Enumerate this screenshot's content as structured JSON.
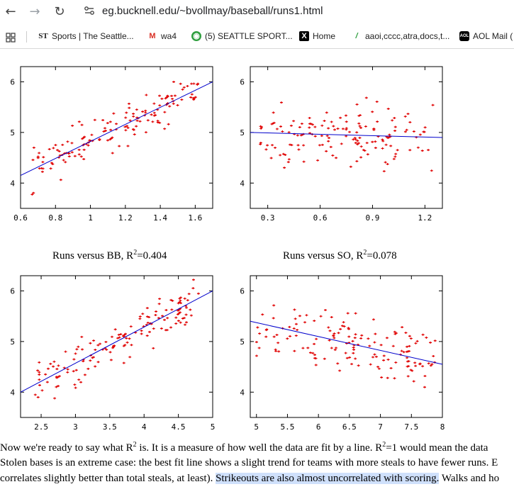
{
  "browser": {
    "url": "eg.bucknell.edu/~bvollmay/baseball/runs1.html",
    "bookmarks": [
      {
        "label": "Sports | The Seattle...",
        "icon": "seattle-times-icon"
      },
      {
        "label": "wa4",
        "icon": "gmail-icon"
      },
      {
        "label": "(5) SEATTLE SPORT...",
        "icon": "podcast-icon"
      },
      {
        "label": "Home",
        "icon": "x-icon"
      },
      {
        "label": "aaoi,cccc,atra,docs,t...",
        "icon": "slash-icon"
      },
      {
        "label": "AOL Mail (",
        "icon": "aol-icon"
      }
    ]
  },
  "captions": {
    "bb_prefix": "Runs versus BB, R",
    "bb_sup": "2",
    "bb_suffix": "=0.404",
    "so_prefix": "Runs versus SO, R",
    "so_sup": "2",
    "so_suffix": "=0.078"
  },
  "paragraph": {
    "line1_a": "Now we're ready to say what R",
    "line1_sup": "2",
    "line1_b": " is. It is a measure of how well the data are fit by a line. R",
    "line1_sup2": "2",
    "line1_c": "=1 would mean the data",
    "line2": "Stolen bases is an extreme case: the best fit line shows a slight trend for teams with more steals to have fewer runs. E",
    "line3_a": "correlates slightly better than total steals, at least). ",
    "line3_hl": "Strikeouts are also almost uncorrelated with scoring.",
    "line3_b": " Walks and ho"
  },
  "colors": {
    "points": "#e00000",
    "fit_line": "#0000cc",
    "axes": "#000000"
  },
  "chart_data": [
    {
      "type": "scatter",
      "title": "",
      "xlim": [
        0.6,
        1.7
      ],
      "ylim": [
        3.5,
        6.3
      ],
      "xticks": [
        "0.6",
        "0.8",
        "1",
        "1.2",
        "1.4",
        "1.6"
      ],
      "xtick_values": [
        0.6,
        0.8,
        1.0,
        1.2,
        1.4,
        1.6
      ],
      "yticks": [
        "4",
        "5",
        "6"
      ],
      "ytick_values": [
        4,
        5,
        6
      ],
      "fit": {
        "x": [
          0.6,
          1.7
        ],
        "y": [
          4.15,
          6.0
        ]
      },
      "seed": 11,
      "n": 150,
      "x_range": [
        0.66,
        1.62
      ],
      "noise": 0.3
    },
    {
      "type": "scatter",
      "title": "",
      "xlim": [
        0.2,
        1.3
      ],
      "ylim": [
        3.5,
        6.3
      ],
      "xticks": [
        "0.3",
        "0.6",
        "0.9",
        "1.2"
      ],
      "xtick_values": [
        0.3,
        0.6,
        0.9,
        1.2
      ],
      "yticks": [
        "4",
        "5",
        "6"
      ],
      "ytick_values": [
        4,
        5,
        6
      ],
      "fit": {
        "x": [
          0.2,
          1.3
        ],
        "y": [
          5.0,
          4.9
        ]
      },
      "seed": 23,
      "n": 150,
      "x_range": [
        0.25,
        1.25
      ],
      "noise": 0.45
    },
    {
      "type": "scatter",
      "title": "",
      "xlim": [
        2.2,
        5.0
      ],
      "ylim": [
        3.5,
        6.3
      ],
      "xticks": [
        "2.5",
        "3",
        "3.5",
        "4",
        "4.5",
        "5"
      ],
      "xtick_values": [
        2.5,
        3,
        3.5,
        4,
        4.5,
        5
      ],
      "yticks": [
        "4",
        "5",
        "6"
      ],
      "ytick_values": [
        4,
        5,
        6
      ],
      "fit": {
        "x": [
          2.2,
          5.0
        ],
        "y": [
          4.0,
          6.0
        ]
      },
      "seed": 37,
      "n": 150,
      "x_range": [
        2.4,
        4.8
      ],
      "noise": 0.3
    },
    {
      "type": "scatter",
      "title": "",
      "xlim": [
        4.9,
        8.0
      ],
      "ylim": [
        3.5,
        6.3
      ],
      "xticks": [
        "5",
        "5.5",
        "6",
        "6.5",
        "7",
        "7.5",
        "8"
      ],
      "xtick_values": [
        5,
        5.5,
        6,
        6.5,
        7,
        7.5,
        8
      ],
      "yticks": [
        "4",
        "5",
        "6"
      ],
      "ytick_values": [
        4,
        5,
        6
      ],
      "fit": {
        "x": [
          4.9,
          8.0
        ],
        "y": [
          5.4,
          4.55
        ]
      },
      "seed": 53,
      "n": 150,
      "x_range": [
        5.0,
        7.9
      ],
      "noise": 0.42
    }
  ]
}
